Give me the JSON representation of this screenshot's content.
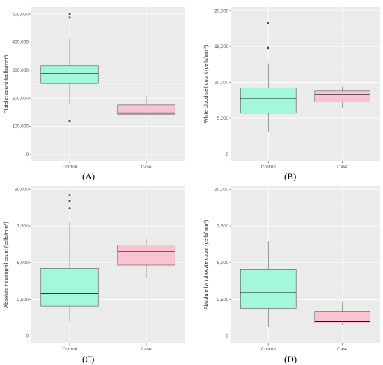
{
  "colors": {
    "panel_bg": "#ebebeb",
    "grid_major": "#ffffff",
    "control_fill": "#a2f7dc",
    "case_fill": "#f9c4cf",
    "box_outline": "#555555",
    "median": "#1a1a1a",
    "outlier": "#4d4d4d",
    "tick_text": "#4d4d4d"
  },
  "chart_data": [
    {
      "type": "box",
      "panel_label": "(A)",
      "ylabel": "Platelet count (cells/mm³)",
      "categories": [
        "Control",
        "Case"
      ],
      "ylim": [
        -25000,
        525000
      ],
      "yticks": [
        0,
        100000,
        200000,
        300000,
        400000,
        500000
      ],
      "ytick_labels": [
        "0",
        "100,000",
        "200,000",
        "300,000",
        "400,000",
        "500,000"
      ],
      "boxes": [
        {
          "category": "Control",
          "lower_whisker": 180000,
          "q1": 252000,
          "median": 287000,
          "q3": 315000,
          "upper_whisker": 412000,
          "outliers": [
            500000,
            488000,
            118000
          ]
        },
        {
          "category": "Case",
          "lower_whisker": 138000,
          "q1": 143000,
          "median": 147000,
          "q3": 176000,
          "upper_whisker": 207000,
          "outliers": []
        }
      ]
    },
    {
      "type": "box",
      "panel_label": "(B)",
      "ylabel": "White blood cell count (cells/mm³)",
      "categories": [
        "Control",
        "Case"
      ],
      "ylim": [
        -1000,
        20500
      ],
      "yticks": [
        0,
        5000,
        10000,
        15000,
        20000
      ],
      "ytick_labels": [
        "0",
        "5,000",
        "10,000",
        "15,000",
        "20,000"
      ],
      "boxes": [
        {
          "category": "Control",
          "lower_whisker": 3100,
          "q1": 5700,
          "median": 7700,
          "q3": 9200,
          "upper_whisker": 12600,
          "outliers": [
            18300,
            14900,
            14700
          ]
        },
        {
          "category": "Case",
          "lower_whisker": 6400,
          "q1": 7300,
          "median": 8300,
          "q3": 8800,
          "upper_whisker": 9400,
          "outliers": []
        }
      ]
    },
    {
      "type": "box",
      "panel_label": "(C)",
      "ylabel": "Absolute neutrophil count (cells/mm³)",
      "categories": [
        "Control",
        "Case"
      ],
      "ylim": [
        -500,
        10200
      ],
      "yticks": [
        0,
        2500,
        5000,
        7500,
        10000
      ],
      "ytick_labels": [
        "0",
        "2,500",
        "5,000",
        "7,500",
        "10,000"
      ],
      "boxes": [
        {
          "category": "Control",
          "lower_whisker": 1000,
          "q1": 2050,
          "median": 2900,
          "q3": 4600,
          "upper_whisker": 7800,
          "outliers": [
            9600,
            9200,
            8700
          ]
        },
        {
          "category": "Case",
          "lower_whisker": 3950,
          "q1": 4850,
          "median": 5750,
          "q3": 6200,
          "upper_whisker": 6600,
          "outliers": []
        }
      ]
    },
    {
      "type": "box",
      "panel_label": "(D)",
      "ylabel": "Absolute lymphocyte count (cells/mm³)",
      "categories": [
        "Control",
        "Case"
      ],
      "ylim": [
        -500,
        10200
      ],
      "yticks": [
        0,
        2500,
        5000,
        7500,
        10000
      ],
      "ytick_labels": [
        "0",
        "2,500",
        "5,000",
        "7,500",
        "10,000"
      ],
      "boxes": [
        {
          "category": "Control",
          "lower_whisker": 600,
          "q1": 1900,
          "median": 2950,
          "q3": 4550,
          "upper_whisker": 6450,
          "outliers": []
        },
        {
          "category": "Case",
          "lower_whisker": 750,
          "q1": 900,
          "median": 1000,
          "q3": 1650,
          "upper_whisker": 2350,
          "outliers": []
        }
      ]
    }
  ]
}
